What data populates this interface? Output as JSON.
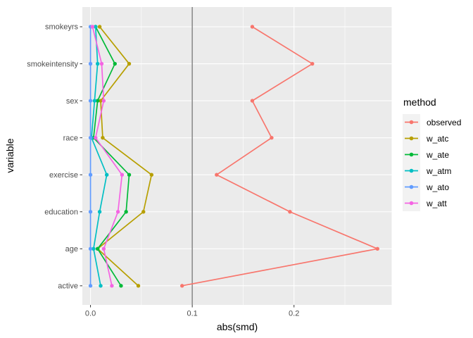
{
  "figure": {
    "panel_bg": "#EBEBEB",
    "grid_color": "#FFFFFF",
    "ref_line_color": "#7F7F7F",
    "tick_color": "#333333",
    "axis_text_color": "#4D4D4D",
    "legend_key_bg": "#F2F2F2"
  },
  "chart_data": {
    "type": "line",
    "orientation": "horizontal",
    "xlabel": "abs(smd)",
    "ylabel": "variable",
    "legend_title": "method",
    "legend_position": "right",
    "grid": "on",
    "categories": [
      "smokeyrs",
      "smokeintensity",
      "sex",
      "race",
      "exercise",
      "education",
      "age",
      "active"
    ],
    "x_ticks": [
      0.0,
      0.1,
      0.2
    ],
    "x_tick_labels": [
      "0.0",
      "0.1",
      "0.2"
    ],
    "x_minor_ticks": [
      0.05,
      0.15,
      0.25
    ],
    "xlim": [
      -0.008,
      0.296
    ],
    "reference_line_x": 0.1,
    "series": [
      {
        "name": "observed",
        "color": "#F8766D",
        "values": [
          0.159,
          0.218,
          0.159,
          0.178,
          0.124,
          0.196,
          0.282,
          0.09
        ]
      },
      {
        "name": "w_atc",
        "color": "#B79F00",
        "values": [
          0.009,
          0.038,
          0.01,
          0.012,
          0.06,
          0.052,
          0.007,
          0.047
        ]
      },
      {
        "name": "w_ate",
        "color": "#00BA38",
        "values": [
          0.005,
          0.024,
          0.007,
          0.003,
          0.038,
          0.035,
          0.007,
          0.03
        ]
      },
      {
        "name": "w_atm",
        "color": "#00BFC4",
        "values": [
          0.005,
          0.007,
          0.004,
          0.001,
          0.016,
          0.009,
          0.003,
          0.01
        ]
      },
      {
        "name": "w_ato",
        "color": "#619CFF",
        "values": [
          0.0,
          0.0,
          0.0,
          0.0,
          0.0,
          0.0,
          0.0,
          0.0
        ]
      },
      {
        "name": "w_att",
        "color": "#F564E3",
        "values": [
          0.002,
          0.011,
          0.013,
          0.005,
          0.031,
          0.027,
          0.013,
          0.021
        ]
      }
    ]
  }
}
